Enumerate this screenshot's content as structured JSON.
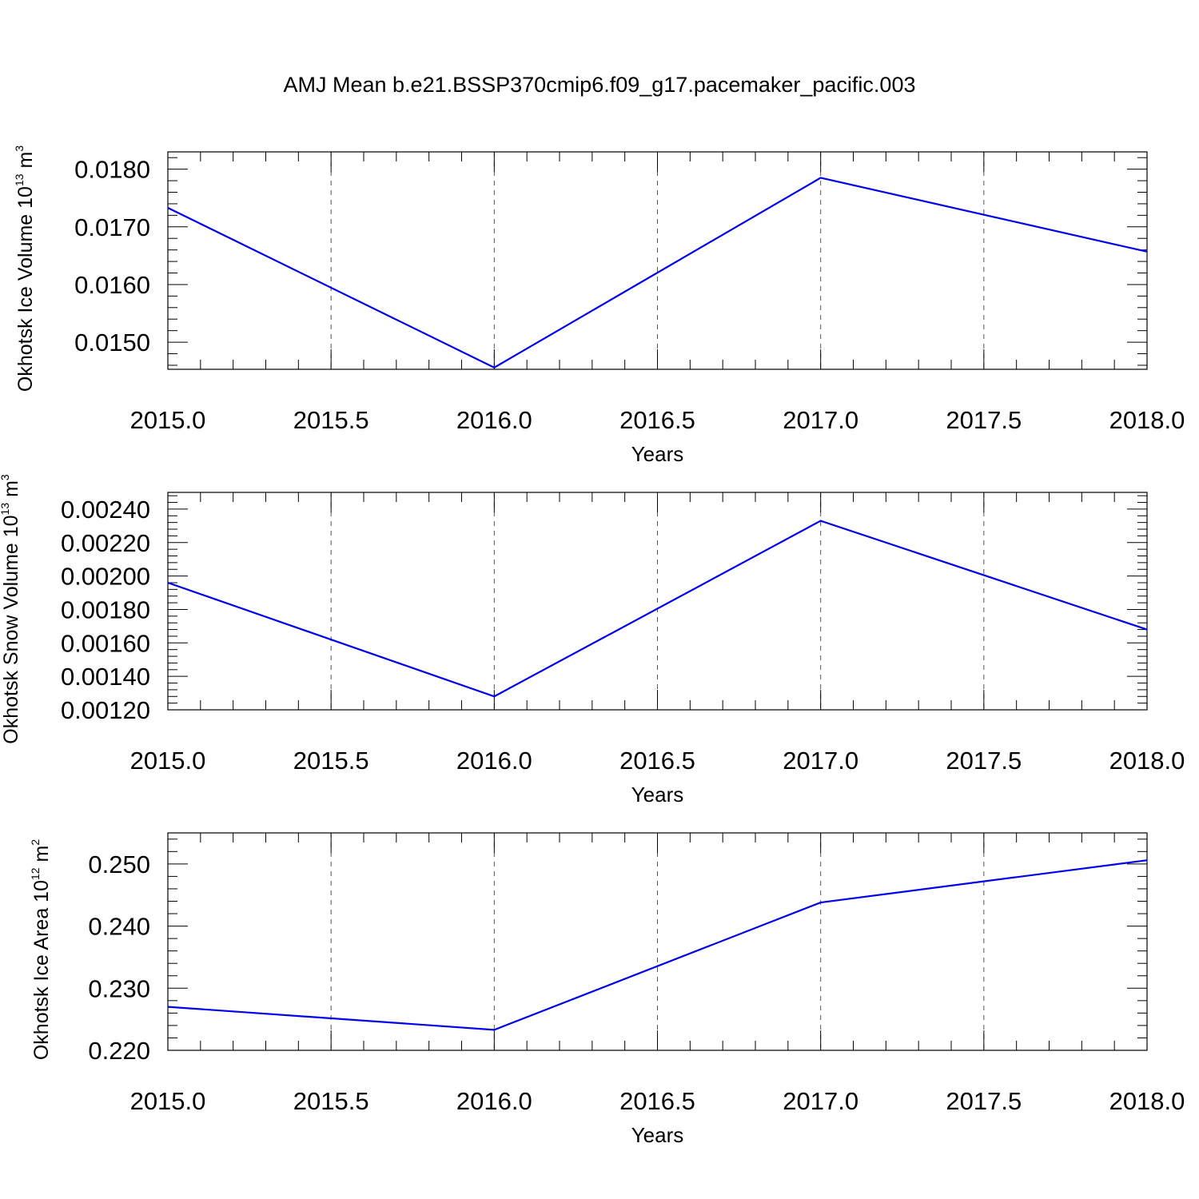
{
  "figure": {
    "title": "AMJ Mean b.e21.BSSP370cmip6.f09_g17.pacemaker_pacific.003"
  },
  "chart_data": [
    {
      "type": "line",
      "xlabel": "Years",
      "ylabel": {
        "text": "Okhotsk Ice Volume 10",
        "sup": "13",
        "unit": " m",
        "unit_sup": "3"
      },
      "xlim": [
        2015.0,
        2018.0
      ],
      "ylim": [
        0.01453,
        0.0183
      ],
      "x_ticks": [
        2015.0,
        2015.5,
        2016.0,
        2016.5,
        2017.0,
        2017.5,
        2018.0
      ],
      "x_tick_labels": [
        "2015.0",
        "2015.5",
        "2016.0",
        "2016.5",
        "2017.0",
        "2017.5",
        "2018.0"
      ],
      "y_ticks": [
        0.015,
        0.016,
        0.017,
        0.018
      ],
      "y_tick_labels": [
        "0.0150",
        "0.0160",
        "0.0170",
        "0.0180"
      ],
      "y_minor_step": 0.0002,
      "grid": "vertical dashed",
      "line_color": "#0000ee",
      "x": [
        2015,
        2016,
        2017,
        2018
      ],
      "y": [
        0.01733,
        0.01456,
        0.01785,
        0.01657
      ]
    },
    {
      "type": "line",
      "xlabel": "Years",
      "ylabel": {
        "text": "Okhotsk Snow Volume 10",
        "sup": "13",
        "unit": " m",
        "unit_sup": "3"
      },
      "xlim": [
        2015.0,
        2018.0
      ],
      "ylim": [
        0.0012,
        0.0025
      ],
      "x_ticks": [
        2015.0,
        2015.5,
        2016.0,
        2016.5,
        2017.0,
        2017.5,
        2018.0
      ],
      "x_tick_labels": [
        "2015.0",
        "2015.5",
        "2016.0",
        "2016.5",
        "2017.0",
        "2017.5",
        "2018.0"
      ],
      "y_ticks": [
        0.0012,
        0.0014,
        0.0016,
        0.0018,
        0.002,
        0.0022,
        0.0024
      ],
      "y_tick_labels": [
        "0.00120",
        "0.00140",
        "0.00160",
        "0.00180",
        "0.00200",
        "0.00220",
        "0.00240"
      ],
      "y_minor_step": 4e-05,
      "grid": "vertical dashed",
      "line_color": "#0000ee",
      "x": [
        2015,
        2016,
        2017,
        2018
      ],
      "y": [
        0.00196,
        0.00128,
        0.00233,
        0.00168
      ]
    },
    {
      "type": "line",
      "xlabel": "Years",
      "ylabel": {
        "text": "Okhotsk Ice Area 10",
        "sup": "12",
        "unit": " m",
        "unit_sup": "2"
      },
      "xlim": [
        2015.0,
        2018.0
      ],
      "ylim": [
        0.22,
        0.255
      ],
      "x_ticks": [
        2015.0,
        2015.5,
        2016.0,
        2016.5,
        2017.0,
        2017.5,
        2018.0
      ],
      "x_tick_labels": [
        "2015.0",
        "2015.5",
        "2016.0",
        "2016.5",
        "2017.0",
        "2017.5",
        "2018.0"
      ],
      "y_ticks": [
        0.22,
        0.23,
        0.24,
        0.25
      ],
      "y_tick_labels": [
        "0.220",
        "0.230",
        "0.240",
        "0.250"
      ],
      "y_minor_step": 0.002,
      "grid": "vertical dashed",
      "line_color": "#0000ee",
      "x": [
        2015,
        2016,
        2017,
        2018
      ],
      "y": [
        0.227,
        0.2233,
        0.2438,
        0.2506
      ]
    }
  ]
}
